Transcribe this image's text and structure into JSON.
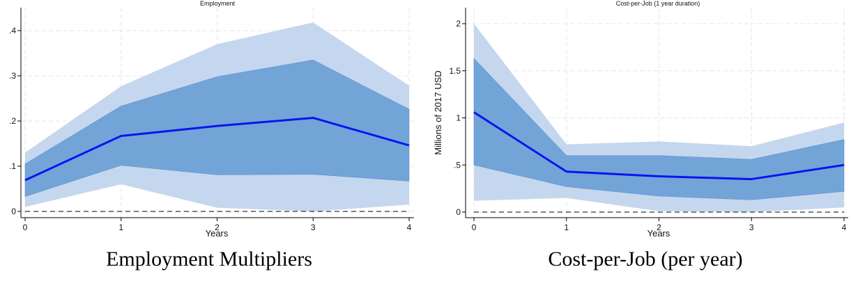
{
  "captions": [
    "Employment Multipliers",
    "Cost-per-Job (per year)"
  ],
  "chart_data": [
    {
      "type": "area",
      "title": "Employment",
      "xlabel": "Years",
      "ylabel": "",
      "x": [
        0,
        1,
        2,
        3,
        4
      ],
      "xticks": [
        0,
        1,
        2,
        3,
        4
      ],
      "xtick_labels": [
        "0",
        "1",
        "2",
        "3",
        "4"
      ],
      "yticks": [
        0,
        0.1,
        0.2,
        0.3,
        0.4
      ],
      "ytick_labels": [
        "0",
        ".1",
        ".2",
        ".3",
        ".4"
      ],
      "xlim": [
        0,
        4
      ],
      "ylim": [
        0,
        0.4
      ],
      "grid": true,
      "reference_line": 0,
      "series": [
        {
          "role": "outer_band",
          "lower": [
            0.01,
            0.06,
            0.008,
            0.0,
            0.015
          ],
          "upper": [
            0.13,
            0.277,
            0.37,
            0.418,
            0.278
          ],
          "color": "#c5d7ee"
        },
        {
          "role": "inner_band",
          "lower": [
            0.033,
            0.102,
            0.081,
            0.082,
            0.067
          ],
          "upper": [
            0.105,
            0.233,
            0.298,
            0.335,
            0.226
          ],
          "color": "#72a4d8"
        },
        {
          "role": "estimate",
          "values": [
            0.069,
            0.167,
            0.189,
            0.207,
            0.146
          ],
          "color": "#0a14f0"
        }
      ]
    },
    {
      "type": "area",
      "title": "Cost-per-Job (1 year duration)",
      "xlabel": "Years",
      "ylabel": "Millions of 2017 USD",
      "x": [
        0,
        1,
        2,
        3,
        4
      ],
      "xticks": [
        0,
        1,
        2,
        3,
        4
      ],
      "xtick_labels": [
        "0",
        "1",
        "2",
        "3",
        "4"
      ],
      "yticks": [
        0,
        0.5,
        1,
        1.5,
        2
      ],
      "ytick_labels": [
        "0",
        ".5",
        "1",
        "1.5",
        "2"
      ],
      "xlim": [
        0,
        4
      ],
      "ylim": [
        0,
        2.0
      ],
      "grid": true,
      "reference_line": 0,
      "series": [
        {
          "role": "outer_band",
          "lower": [
            0.12,
            0.15,
            0.01,
            0.0,
            0.05
          ],
          "upper": [
            2.0,
            0.72,
            0.75,
            0.7,
            0.95
          ],
          "color": "#c5d7ee"
        },
        {
          "role": "inner_band",
          "lower": [
            0.5,
            0.27,
            0.17,
            0.13,
            0.22
          ],
          "upper": [
            1.63,
            0.6,
            0.6,
            0.56,
            0.77
          ],
          "color": "#72a4d8"
        },
        {
          "role": "estimate",
          "values": [
            1.06,
            0.43,
            0.38,
            0.35,
            0.5
          ],
          "color": "#0a14f0"
        }
      ]
    }
  ]
}
